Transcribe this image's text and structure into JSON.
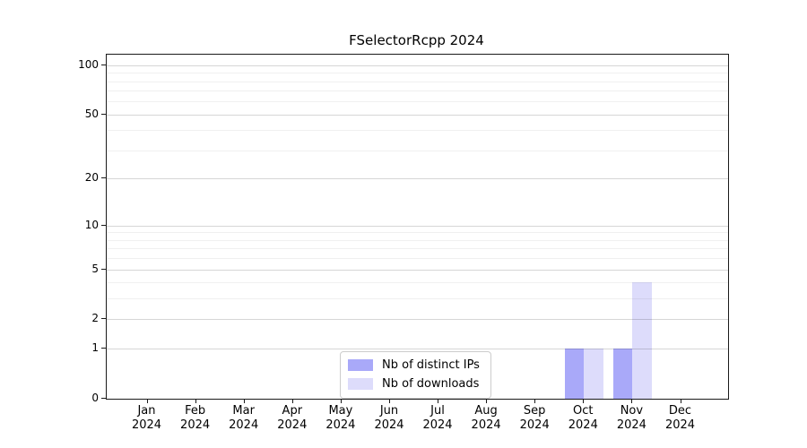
{
  "chart_data": {
    "type": "bar",
    "title": "FSelectorRcpp 2024",
    "categories": [
      {
        "month": "Jan",
        "year": "2024"
      },
      {
        "month": "Feb",
        "year": "2024"
      },
      {
        "month": "Mar",
        "year": "2024"
      },
      {
        "month": "Apr",
        "year": "2024"
      },
      {
        "month": "May",
        "year": "2024"
      },
      {
        "month": "Jun",
        "year": "2024"
      },
      {
        "month": "Jul",
        "year": "2024"
      },
      {
        "month": "Aug",
        "year": "2024"
      },
      {
        "month": "Sep",
        "year": "2024"
      },
      {
        "month": "Oct",
        "year": "2024"
      },
      {
        "month": "Nov",
        "year": "2024"
      },
      {
        "month": "Dec",
        "year": "2024"
      }
    ],
    "series": [
      {
        "name": "Nb of distinct IPs",
        "color": "#a9a9f9",
        "values": [
          0,
          0,
          0,
          0,
          0,
          0,
          0,
          0,
          0,
          1,
          1,
          0
        ]
      },
      {
        "name": "Nb of downloads",
        "color": "#dddcfb",
        "values": [
          0,
          0,
          0,
          0,
          0,
          0,
          0,
          0,
          0,
          1,
          4,
          0
        ]
      }
    ],
    "y_axis": {
      "scale": "log(value+1)",
      "major_ticks": [
        0,
        1,
        2,
        5,
        10,
        20,
        50,
        100
      ],
      "minor_gridlines": [
        3,
        4,
        6,
        7,
        8,
        9,
        30,
        40,
        60,
        70,
        80,
        90
      ],
      "top_value": 116
    },
    "x_axis": {
      "tick_label_format": "month over year"
    },
    "grid": "horizontal",
    "legend_position": "bottom-center-inside"
  }
}
